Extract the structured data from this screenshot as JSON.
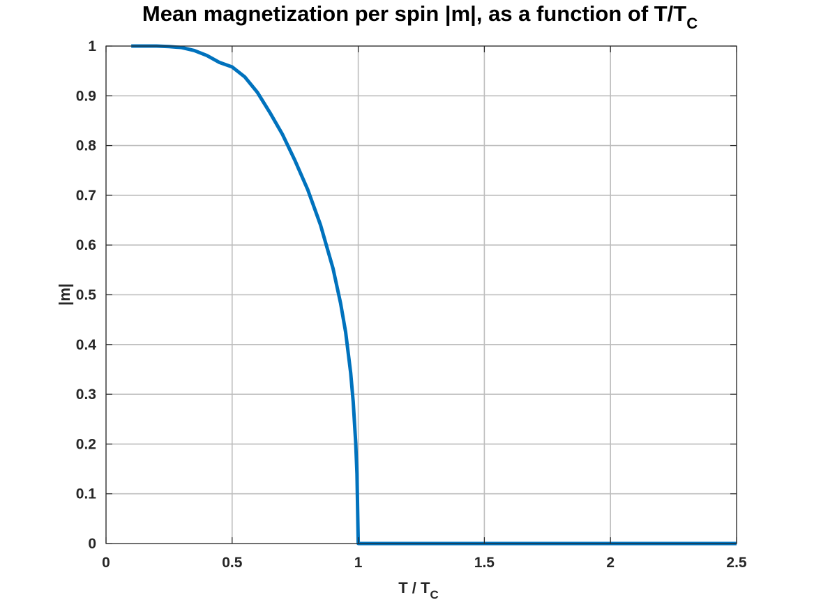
{
  "chart_data": {
    "type": "line",
    "title": "Mean magnetization per spin |m|, as a function of T/T",
    "title_subscript": "C",
    "xlabel": "T / T",
    "xlabel_subscript": "C",
    "ylabel": "|m|",
    "xlim": [
      0,
      2.5
    ],
    "ylim": [
      0,
      1
    ],
    "x_ticks": [
      0,
      0.5,
      1,
      1.5,
      2,
      2.5
    ],
    "x_tick_labels": [
      "0",
      "0.5",
      "1",
      "1.5",
      "2",
      "2.5"
    ],
    "y_ticks": [
      0,
      0.1,
      0.2,
      0.3,
      0.4,
      0.5,
      0.6,
      0.7,
      0.8,
      0.9,
      1
    ],
    "y_tick_labels": [
      "0",
      "0.1",
      "0.2",
      "0.3",
      "0.4",
      "0.5",
      "0.6",
      "0.7",
      "0.8",
      "0.9",
      "1"
    ],
    "grid": true,
    "line_color": "#0072BD",
    "series": [
      {
        "x": [
          0.1,
          0.2,
          0.25,
          0.3,
          0.35,
          0.4,
          0.45,
          0.5,
          0.55,
          0.6,
          0.65,
          0.7,
          0.75,
          0.8,
          0.85,
          0.9,
          0.93,
          0.95,
          0.97,
          0.98,
          0.99,
          0.995,
          1.0,
          1.5,
          2.0,
          2.5
        ],
        "y": [
          1.0,
          1.0,
          0.999,
          0.997,
          0.991,
          0.981,
          0.967,
          0.958,
          0.938,
          0.907,
          0.866,
          0.822,
          0.769,
          0.711,
          0.641,
          0.553,
          0.483,
          0.425,
          0.343,
          0.285,
          0.202,
          0.14,
          0.0,
          0.0,
          0.0,
          0.0
        ]
      }
    ]
  }
}
